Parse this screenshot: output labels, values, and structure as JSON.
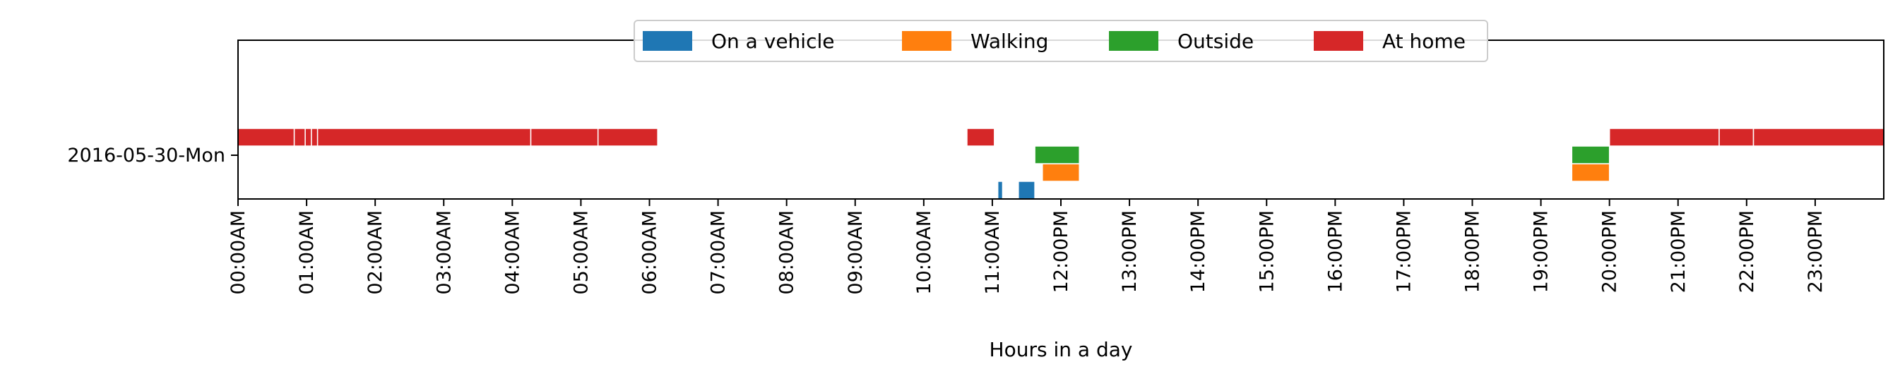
{
  "chart_data": {
    "type": "timeline",
    "title": "",
    "xlabel": "Hours in a day",
    "ylabel": "",
    "xlim": [
      0,
      24
    ],
    "y_categories": [
      "2016-05-30-Mon"
    ],
    "x_ticks": [
      {
        "value": 0,
        "label": "00:00AM"
      },
      {
        "value": 1,
        "label": "01:00AM"
      },
      {
        "value": 2,
        "label": "02:00AM"
      },
      {
        "value": 3,
        "label": "03:00AM"
      },
      {
        "value": 4,
        "label": "04:00AM"
      },
      {
        "value": 5,
        "label": "05:00AM"
      },
      {
        "value": 6,
        "label": "06:00AM"
      },
      {
        "value": 7,
        "label": "07:00AM"
      },
      {
        "value": 8,
        "label": "08:00AM"
      },
      {
        "value": 9,
        "label": "09:00AM"
      },
      {
        "value": 10,
        "label": "10:00AM"
      },
      {
        "value": 11,
        "label": "11:00AM"
      },
      {
        "value": 12,
        "label": "12:00PM"
      },
      {
        "value": 13,
        "label": "13:00PM"
      },
      {
        "value": 14,
        "label": "14:00PM"
      },
      {
        "value": 15,
        "label": "15:00PM"
      },
      {
        "value": 16,
        "label": "16:00PM"
      },
      {
        "value": 17,
        "label": "17:00PM"
      },
      {
        "value": 18,
        "label": "18:00PM"
      },
      {
        "value": 19,
        "label": "19:00PM"
      },
      {
        "value": 20,
        "label": "20:00PM"
      },
      {
        "value": 21,
        "label": "21:00PM"
      },
      {
        "value": 22,
        "label": "22:00PM"
      },
      {
        "value": 23,
        "label": "23:00PM"
      }
    ],
    "legend_position": "top-center",
    "grid": false,
    "series": [
      {
        "name": "On a vehicle",
        "color": "#1f77b4",
        "lane": 3,
        "intervals": [
          [
            11.08,
            11.15
          ],
          [
            11.38,
            11.62
          ]
        ]
      },
      {
        "name": "Walking",
        "color": "#ff7f0e",
        "lane": 2,
        "intervals": [
          [
            11.73,
            12.27
          ],
          [
            19.45,
            20.0
          ]
        ]
      },
      {
        "name": "Outside",
        "color": "#2ca02c",
        "lane": 1,
        "intervals": [
          [
            11.62,
            12.27
          ],
          [
            19.45,
            20.0
          ]
        ]
      },
      {
        "name": "At home",
        "color": "#d62728",
        "lane": 0,
        "intervals": [
          [
            0.0,
            0.82
          ],
          [
            0.82,
            0.98
          ],
          [
            0.98,
            1.07
          ],
          [
            1.07,
            1.16
          ],
          [
            1.16,
            4.27
          ],
          [
            4.27,
            5.25
          ],
          [
            5.25,
            6.12
          ],
          [
            10.63,
            11.03
          ],
          [
            20.0,
            21.6
          ],
          [
            21.6,
            22.1
          ],
          [
            22.1,
            24.0
          ]
        ]
      }
    ]
  }
}
